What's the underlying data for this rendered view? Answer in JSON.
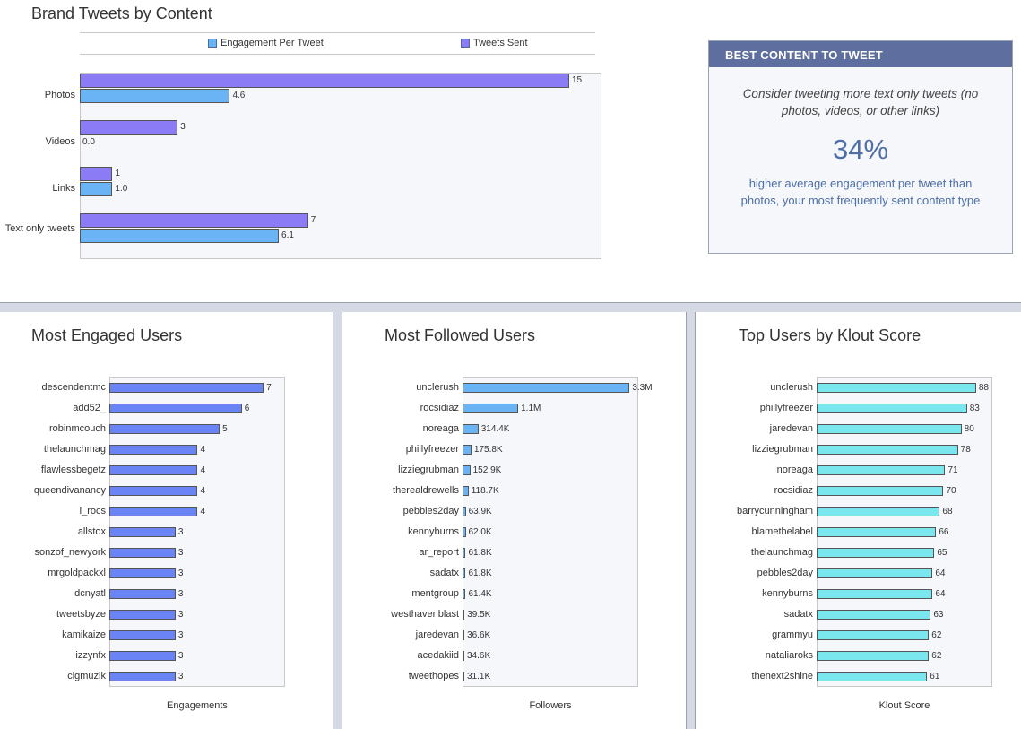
{
  "chart_data": [
    {
      "type": "bar",
      "orientation": "horizontal",
      "title": "Brand Tweets by Content",
      "categories": [
        "Photos",
        "Videos",
        "Links",
        "Text only tweets"
      ],
      "series": [
        {
          "name": "Tweets Sent",
          "values": [
            15,
            3,
            1,
            7
          ],
          "labels": [
            "15",
            "3",
            "1",
            "7"
          ],
          "color": "#8b7bf5"
        },
        {
          "name": "Engagement Per Tweet",
          "values": [
            4.6,
            0.0,
            1.0,
            6.1
          ],
          "labels": [
            "4.6",
            "0.0",
            "1.0",
            "6.1"
          ],
          "color": "#6ab4f5"
        }
      ],
      "legend_order": [
        "Engagement Per Tweet",
        "Tweets Sent"
      ],
      "legend_position": "top",
      "xlim": [
        0,
        16
      ]
    },
    {
      "type": "bar",
      "orientation": "horizontal",
      "title": "Most Engaged Users",
      "xlabel": "Engagements",
      "color": "#6a84f5",
      "xlim": [
        0,
        7.8
      ],
      "categories": [
        "descendentmc",
        "add52_",
        "robinmcouch",
        "thelaunchmag",
        "flawlessbegetz",
        "queendivanancy",
        "i_rocs",
        "allstox",
        "sonzof_newyork",
        "mrgoldpackxl",
        "dcnyatl",
        "tweetsbyze",
        "kamikaize",
        "izzynfx",
        "cigmuzik"
      ],
      "values": [
        7,
        6,
        5,
        4,
        4,
        4,
        4,
        3,
        3,
        3,
        3,
        3,
        3,
        3,
        3
      ],
      "labels": [
        "7",
        "6",
        "5",
        "4",
        "4",
        "4",
        "4",
        "3",
        "3",
        "3",
        "3",
        "3",
        "3",
        "3",
        "3"
      ]
    },
    {
      "type": "bar",
      "orientation": "horizontal",
      "title": "Most Followed Users",
      "xlabel": "Followers",
      "color": "#6ab4f5",
      "xlim": [
        0,
        3400000
      ],
      "categories": [
        "unclerush",
        "rocsidiaz",
        "noreaga",
        "phillyfreezer",
        "lizziegrubman",
        "therealdrewells",
        "pebbles2day",
        "kennyburns",
        "ar_report",
        "sadatx",
        "mentgroup",
        "westhavenblast",
        "jaredevan",
        "acedakiid",
        "tweethopes"
      ],
      "values": [
        3300000,
        1100000,
        314400,
        175800,
        152900,
        118700,
        63900,
        62000,
        61800,
        61800,
        61400,
        39500,
        36600,
        34600,
        31100
      ],
      "labels": [
        "3.3M",
        "1.1M",
        "314.4K",
        "175.8K",
        "152.9K",
        "118.7K",
        "63.9K",
        "62.0K",
        "61.8K",
        "61.8K",
        "61.4K",
        "39.5K",
        "36.6K",
        "34.6K",
        "31.1K"
      ]
    },
    {
      "type": "bar",
      "orientation": "horizontal",
      "title": "Top Users by Klout Score",
      "xlabel": "Klout Score",
      "color": "#7ae6ee",
      "xlim": [
        0,
        95
      ],
      "categories": [
        "unclerush",
        "phillyfreezer",
        "jaredevan",
        "lizziegrubman",
        "noreaga",
        "rocsidiaz",
        "barrycunningham",
        "blamethelabel",
        "thelaunchmag",
        "pebbles2day",
        "kennyburns",
        "sadatx",
        "grammyu",
        "nataliaroks",
        "thenext2shine"
      ],
      "values": [
        88,
        83,
        80,
        78,
        71,
        70,
        68,
        66,
        65,
        64,
        64,
        63,
        62,
        62,
        61
      ],
      "labels": [
        "88",
        "83",
        "80",
        "78",
        "71",
        "70",
        "68",
        "66",
        "65",
        "64",
        "64",
        "63",
        "62",
        "62",
        "61"
      ]
    }
  ],
  "best_content": {
    "header": "BEST CONTENT TO TWEET",
    "text": "Consider tweeting more text only tweets (no photos, videos, or other links)",
    "percent": "34%",
    "description": "higher average engagement per tweet than photos, your most frequently sent content type"
  }
}
